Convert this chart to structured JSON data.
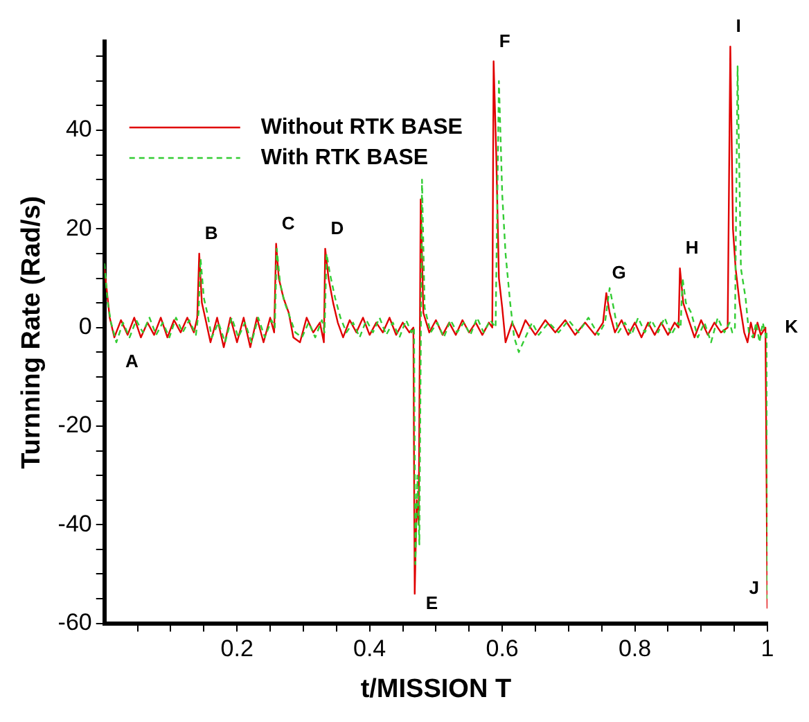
{
  "chart_data": {
    "type": "line",
    "xlabel": "t/MISSION T",
    "ylabel": "Turnning Rate (Rad/s)",
    "xlim": [
      0,
      1
    ],
    "ylim": [
      -60,
      58
    ],
    "xticks": [
      {
        "value": 0.05,
        "label": null
      },
      {
        "value": 0.1,
        "label": null
      },
      {
        "value": 0.15,
        "label": null
      },
      0.2,
      {
        "value": 0.25,
        "label": null
      },
      {
        "value": 0.3,
        "label": null
      },
      {
        "value": 0.35,
        "label": null
      },
      0.4,
      {
        "value": 0.45,
        "label": null
      },
      {
        "value": 0.5,
        "label": null
      },
      {
        "value": 0.55,
        "label": null
      },
      0.6,
      {
        "value": 0.65,
        "label": null
      },
      {
        "value": 0.7,
        "label": null
      },
      {
        "value": 0.75,
        "label": null
      },
      0.8,
      {
        "value": 0.85,
        "label": null
      },
      {
        "value": 0.9,
        "label": null
      },
      {
        "value": 0.95,
        "label": null
      },
      1
    ],
    "yticks": [
      -60,
      {
        "value": -55,
        "label": null
      },
      {
        "value": -50,
        "label": null
      },
      {
        "value": -45,
        "label": null
      },
      -40,
      {
        "value": -35,
        "label": null
      },
      {
        "value": -30,
        "label": null
      },
      {
        "value": -25,
        "label": null
      },
      -20,
      {
        "value": -15,
        "label": null
      },
      {
        "value": -10,
        "label": null
      },
      {
        "value": -5,
        "label": null
      },
      0,
      {
        "value": 5,
        "label": null
      },
      {
        "value": 10,
        "label": null
      },
      {
        "value": 15,
        "label": null
      },
      20,
      {
        "value": 25,
        "label": null
      },
      {
        "value": 30,
        "label": null
      },
      {
        "value": 35,
        "label": null
      },
      40,
      {
        "value": 45,
        "label": null
      },
      {
        "value": 50,
        "label": null
      },
      {
        "value": 55,
        "label": null
      }
    ],
    "grid": false,
    "legend": "top left",
    "marker": "none",
    "series": [
      {
        "name": "Without RTK BASE",
        "color": "#e00000",
        "line_style": "solid",
        "x": [
          0,
          0.004,
          0.008,
          0.015,
          0.025,
          0.035,
          0.045,
          0.055,
          0.065,
          0.075,
          0.085,
          0.095,
          0.105,
          0.115,
          0.125,
          0.135,
          0.14,
          0.143,
          0.147,
          0.152,
          0.16,
          0.17,
          0.18,
          0.19,
          0.2,
          0.21,
          0.22,
          0.23,
          0.24,
          0.25,
          0.256,
          0.259,
          0.263,
          0.27,
          0.278,
          0.285,
          0.295,
          0.305,
          0.315,
          0.325,
          0.331,
          0.333,
          0.338,
          0.345,
          0.352,
          0.36,
          0.37,
          0.38,
          0.39,
          0.4,
          0.41,
          0.42,
          0.43,
          0.44,
          0.45,
          0.46,
          0.466,
          0.468,
          0.471,
          0.474,
          0.477,
          0.481,
          0.49,
          0.5,
          0.51,
          0.52,
          0.53,
          0.54,
          0.55,
          0.56,
          0.57,
          0.58,
          0.585,
          0.587,
          0.591,
          0.595,
          0.6,
          0.605,
          0.615,
          0.625,
          0.635,
          0.65,
          0.665,
          0.68,
          0.695,
          0.71,
          0.725,
          0.74,
          0.752,
          0.757,
          0.762,
          0.77,
          0.78,
          0.79,
          0.8,
          0.81,
          0.82,
          0.83,
          0.84,
          0.85,
          0.86,
          0.866,
          0.868,
          0.873,
          0.88,
          0.89,
          0.9,
          0.91,
          0.92,
          0.93,
          0.94,
          0.944,
          0.948,
          0.952,
          0.958,
          0.965,
          0.97,
          0.975,
          0.98,
          0.985,
          0.99,
          0.997,
          1
        ],
        "values": [
          12,
          7,
          2,
          -2,
          1.5,
          -1.5,
          2,
          -2,
          1,
          -1.5,
          2,
          -2,
          1.5,
          -1,
          2,
          -1,
          2,
          15,
          5,
          2,
          -3,
          2,
          -4,
          2,
          -3,
          2,
          -4,
          2,
          -3,
          2,
          -1,
          17,
          10,
          6,
          3,
          -2,
          -3,
          2,
          -1,
          1,
          -3,
          16,
          10,
          5,
          1,
          -2,
          1.5,
          -1,
          2,
          -1.5,
          1,
          -1,
          2,
          -1.5,
          1,
          -1,
          0,
          -54,
          -35,
          -40,
          26,
          3,
          -1,
          1.5,
          -1.5,
          1,
          -1.5,
          1.5,
          -1,
          1,
          -1.5,
          1,
          0,
          54,
          35,
          10,
          4,
          -3,
          1,
          -2,
          1.5,
          -1.5,
          1.5,
          -1,
          1.5,
          -1.5,
          1,
          -1.5,
          1,
          7,
          3,
          -1,
          1.5,
          -1.5,
          1,
          -2,
          1,
          -1.5,
          1,
          -1.5,
          1,
          0,
          12,
          5,
          2,
          -2,
          1.5,
          -1.5,
          1,
          -1,
          0,
          57,
          20,
          12,
          5,
          -1,
          -3,
          1,
          -2,
          1,
          -1.5,
          0,
          -57
        ]
      },
      {
        "name": "With RTK BASE",
        "color": "#33cc33",
        "line_style": "dashed",
        "x": [
          0,
          0.005,
          0.01,
          0.018,
          0.028,
          0.038,
          0.048,
          0.058,
          0.068,
          0.078,
          0.088,
          0.098,
          0.108,
          0.118,
          0.128,
          0.138,
          0.142,
          0.145,
          0.15,
          0.155,
          0.162,
          0.172,
          0.182,
          0.192,
          0.202,
          0.212,
          0.222,
          0.232,
          0.242,
          0.252,
          0.257,
          0.26,
          0.265,
          0.272,
          0.28,
          0.288,
          0.298,
          0.308,
          0.318,
          0.328,
          0.332,
          0.335,
          0.34,
          0.348,
          0.356,
          0.365,
          0.375,
          0.385,
          0.395,
          0.405,
          0.415,
          0.425,
          0.435,
          0.445,
          0.455,
          0.463,
          0.467,
          0.469,
          0.472,
          0.475,
          0.479,
          0.483,
          0.492,
          0.502,
          0.512,
          0.522,
          0.532,
          0.542,
          0.552,
          0.562,
          0.572,
          0.582,
          0.59,
          0.595,
          0.6,
          0.605,
          0.612,
          0.618,
          0.625,
          0.635,
          0.645,
          0.655,
          0.67,
          0.685,
          0.7,
          0.715,
          0.73,
          0.745,
          0.755,
          0.762,
          0.768,
          0.775,
          0.785,
          0.795,
          0.805,
          0.815,
          0.825,
          0.835,
          0.845,
          0.855,
          0.865,
          0.869,
          0.872,
          0.877,
          0.885,
          0.895,
          0.905,
          0.915,
          0.925,
          0.935,
          0.943,
          0.947,
          0.951,
          0.955,
          0.96,
          0.967,
          0.972,
          0.978,
          0.983,
          0.988,
          0.993,
          0.998,
          0.999,
          1
        ],
        "values": [
          13,
          5,
          1,
          -3,
          1,
          -2,
          1.5,
          -1,
          2,
          -1.5,
          1,
          -2,
          2,
          -1,
          1.5,
          -1.5,
          3,
          14,
          6,
          3,
          -2,
          1,
          -3,
          2,
          -2,
          1,
          -3,
          2,
          -2,
          1.5,
          0,
          16,
          9,
          5,
          2,
          -1,
          -2,
          1,
          -2,
          1.5,
          -1,
          15,
          11,
          6,
          2,
          -1,
          1,
          -2,
          1.5,
          -1,
          2,
          -1.5,
          1,
          -2,
          1.5,
          -1,
          0,
          -48,
          -30,
          -44,
          30,
          4,
          -1,
          1,
          -2,
          1.5,
          -1,
          1,
          -1.5,
          2,
          -1,
          1.5,
          0,
          50,
          27,
          15,
          5,
          -2,
          -5,
          -2,
          1,
          -1.5,
          1,
          -1,
          1.5,
          -1,
          2,
          -1.5,
          1,
          8,
          4,
          -1,
          1,
          -1.5,
          2,
          -1,
          1.5,
          -1,
          2,
          -1.5,
          1,
          0,
          10,
          5,
          3,
          -2,
          1,
          -3,
          2,
          -1,
          1,
          -1,
          0,
          53,
          12,
          6,
          -1,
          -2,
          1,
          -3,
          1,
          -2,
          -1,
          -55
        ]
      }
    ],
    "annotations": [
      {
        "text": "A",
        "x": 0.015,
        "y": -2
      },
      {
        "text": "B",
        "x": 0.143,
        "y": 15
      },
      {
        "text": "C",
        "x": 0.259,
        "y": 17
      },
      {
        "text": "D",
        "x": 0.333,
        "y": 16
      },
      {
        "text": "E",
        "x": 0.468,
        "y": -54
      },
      {
        "text": "F",
        "x": 0.587,
        "y": 54
      },
      {
        "text": "G",
        "x": 0.757,
        "y": 7
      },
      {
        "text": "H",
        "x": 0.868,
        "y": 12
      },
      {
        "text": "I",
        "x": 0.944,
        "y": 57
      },
      {
        "text": "J",
        "x": 1,
        "y": -57
      },
      {
        "text": "K",
        "x": 0.997,
        "y": 0
      }
    ]
  }
}
